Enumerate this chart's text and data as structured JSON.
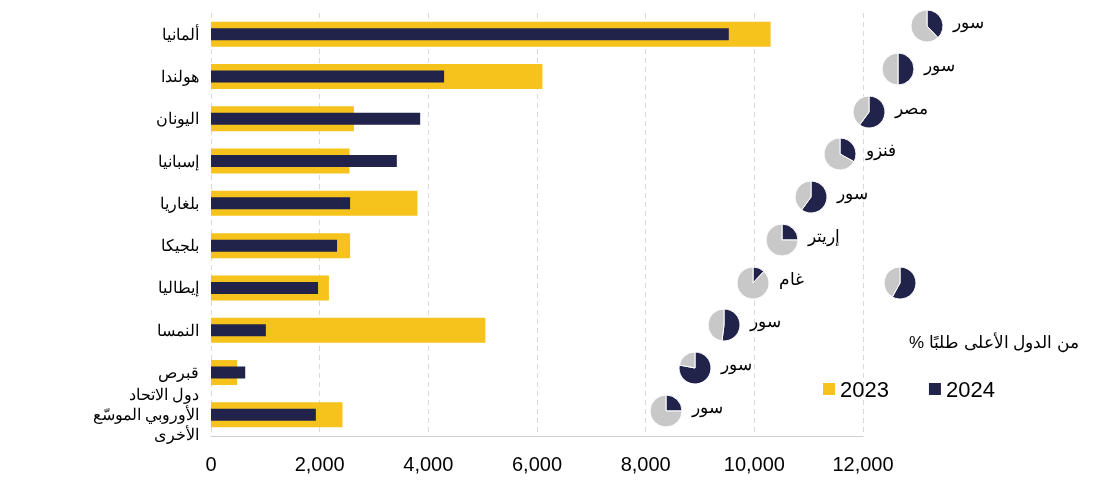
{
  "chart_data": [
    {
      "type": "bar",
      "orientation": "horizontal",
      "categories": [
        "ألمانيا",
        "هولندا",
        "اليونان",
        "إسبانيا",
        "بلغاريا",
        "بلجيكا",
        "إيطاليا",
        "النمسا",
        "قبرص",
        "دول الاتحاد الأوروبي الموسّع الأخرى"
      ],
      "series": [
        {
          "name": "2023",
          "color": "#f5c31c",
          "values": [
            10300,
            6100,
            2630,
            2550,
            3800,
            2560,
            2170,
            5050,
            480,
            2420
          ]
        },
        {
          "name": "2024",
          "color": "#22234b",
          "values": [
            9530,
            4290,
            3850,
            3420,
            2560,
            2320,
            1970,
            1010,
            630,
            1930
          ]
        }
      ],
      "xlim": [
        0,
        12000
      ],
      "xticks": [
        {
          "value": 0,
          "label": "0"
        },
        {
          "value": 2000,
          "label": "2,000"
        },
        {
          "value": 4000,
          "label": "4,000"
        },
        {
          "value": 6000,
          "label": "6,000"
        },
        {
          "value": 8000,
          "label": "8,000"
        },
        {
          "value": 10000,
          "label": "10,000"
        },
        {
          "value": 12000,
          "label": "12,000"
        }
      ],
      "grid": "x",
      "legend": "bottom right"
    },
    {
      "type": "pie",
      "categories": [
        "سور",
        null
      ],
      "values": [
        38,
        62
      ],
      "colors": [
        "#22234b",
        "#c8c8c8"
      ]
    },
    {
      "type": "pie",
      "categories": [
        "سور",
        null
      ],
      "values": [
        50,
        50
      ],
      "colors": [
        "#22234b",
        "#c8c8c8"
      ]
    },
    {
      "type": "pie",
      "categories": [
        "مصر",
        null
      ],
      "values": [
        60,
        40
      ],
      "colors": [
        "#22234b",
        "#c8c8c8"
      ]
    },
    {
      "type": "pie",
      "categories": [
        "فنزو",
        null
      ],
      "values": [
        33,
        67
      ],
      "colors": [
        "#22234b",
        "#c8c8c8"
      ]
    },
    {
      "type": "pie",
      "categories": [
        "سور",
        null
      ],
      "values": [
        60,
        40
      ],
      "colors": [
        "#22234b",
        "#c8c8c8"
      ]
    },
    {
      "type": "pie",
      "categories": [
        "إريتر",
        null
      ],
      "values": [
        25,
        75
      ],
      "colors": [
        "#22234b",
        "#c8c8c8"
      ]
    },
    {
      "type": "pie",
      "categories": [
        "غام",
        null
      ],
      "values": [
        12,
        88
      ],
      "colors": [
        "#22234b",
        "#c8c8c8"
      ]
    },
    {
      "type": "pie",
      "categories": [
        "سور",
        null
      ],
      "values": [
        52,
        48
      ],
      "colors": [
        "#22234b",
        "#c8c8c8"
      ]
    },
    {
      "type": "pie",
      "categories": [
        "سور",
        null
      ],
      "values": [
        78,
        22
      ],
      "colors": [
        "#22234b",
        "#c8c8c8"
      ]
    },
    {
      "type": "pie",
      "categories": [
        "سور",
        null
      ],
      "values": [
        25,
        75
      ],
      "colors": [
        "#22234b",
        "#c8c8c8"
      ]
    },
    {
      "type": "pie",
      "title": "% من الدول الأعلى طلبًا",
      "categories": [
        null,
        null
      ],
      "values": [
        58,
        42
      ],
      "colors": [
        "#22234b",
        "#c8c8c8"
      ]
    }
  ]
}
